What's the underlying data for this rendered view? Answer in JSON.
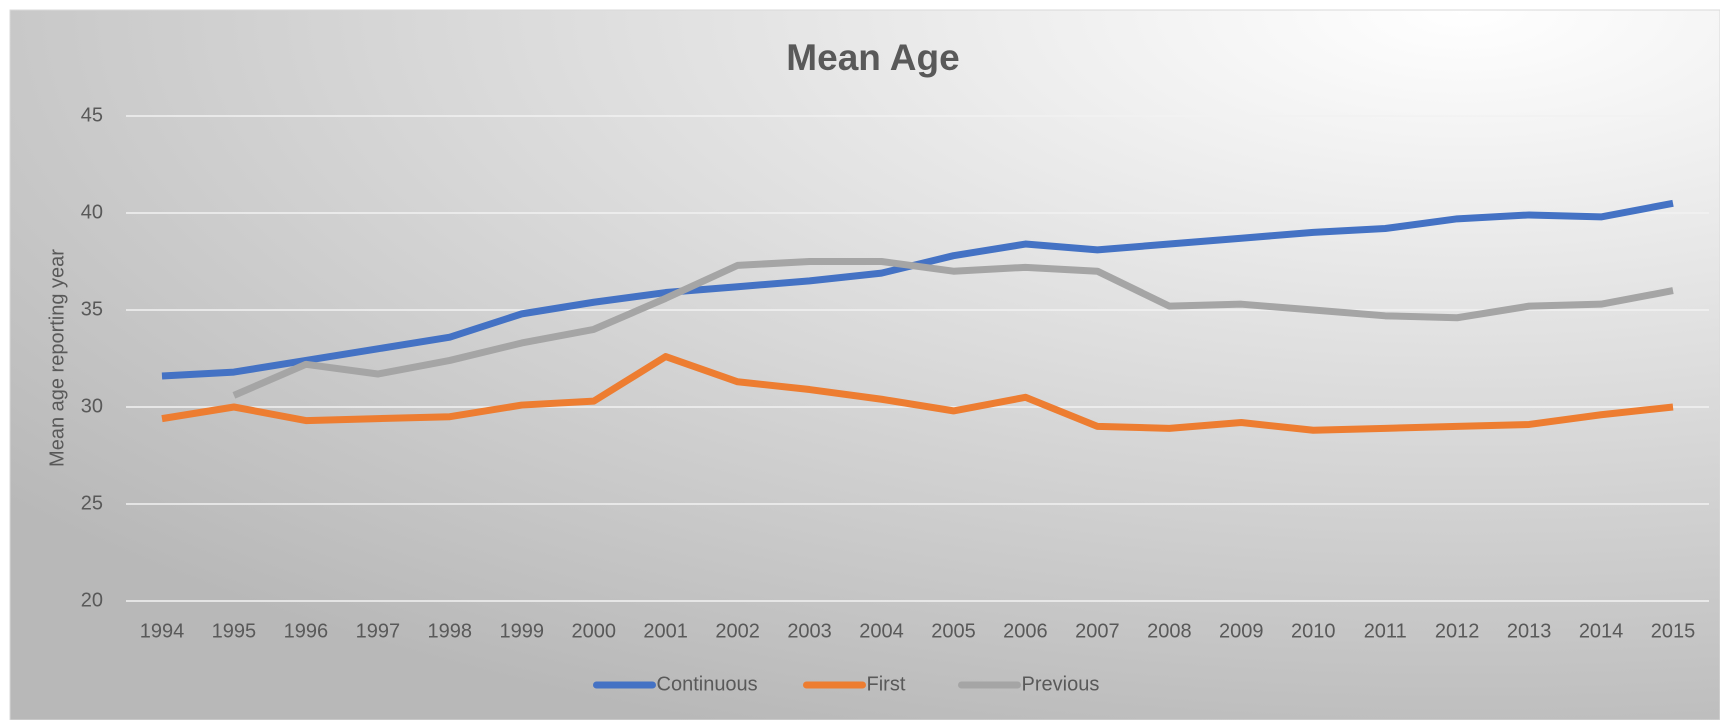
{
  "chart_data": {
    "type": "line",
    "title": "Mean Age",
    "y_label": "Mean age reporting year",
    "categories": [
      "1994",
      "1995",
      "1996",
      "1997",
      "1998",
      "1999",
      "2000",
      "2001",
      "2002",
      "2003",
      "2004",
      "2005",
      "2006",
      "2007",
      "2008",
      "2009",
      "2010",
      "2011",
      "2012",
      "2013",
      "2014",
      "2015"
    ],
    "series": [
      {
        "name": "Continuous",
        "color": "#4472c4",
        "values": [
          31.6,
          31.8,
          32.4,
          33.0,
          33.6,
          34.8,
          35.4,
          35.9,
          36.2,
          36.5,
          36.9,
          37.8,
          38.4,
          38.1,
          38.4,
          38.7,
          39.0,
          39.2,
          39.7,
          39.9,
          39.8,
          40.5
        ]
      },
      {
        "name": "First",
        "color": "#ed7d31",
        "values": [
          29.4,
          30.0,
          29.3,
          29.4,
          29.5,
          30.1,
          30.3,
          32.6,
          31.3,
          30.9,
          30.4,
          29.8,
          30.5,
          29.0,
          28.9,
          29.2,
          28.8,
          28.9,
          29.0,
          29.1,
          29.6,
          30.0
        ]
      },
      {
        "name": "Previous",
        "color": "#a5a5a5",
        "values": [
          null,
          30.6,
          32.2,
          31.7,
          32.4,
          33.3,
          34.0,
          35.6,
          37.3,
          37.5,
          37.5,
          37.0,
          37.2,
          37.0,
          35.2,
          35.3,
          35.0,
          34.7,
          34.6,
          35.2,
          35.3,
          36.0
        ]
      }
    ],
    "ylim": [
      20,
      45
    ],
    "yticks": [
      20,
      25,
      30,
      35,
      40,
      45
    ],
    "grid": true,
    "legend": "bottom"
  }
}
